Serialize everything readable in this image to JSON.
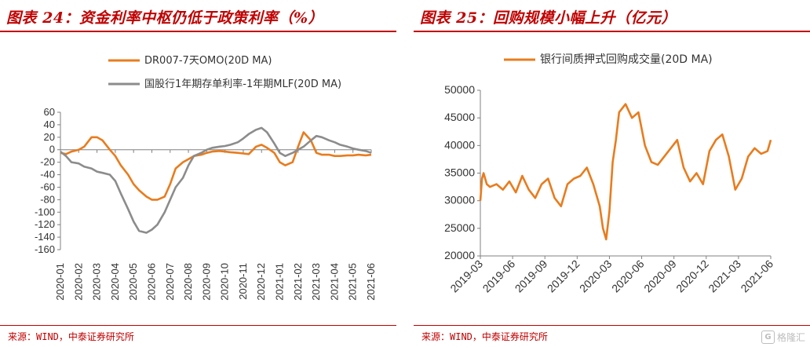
{
  "left": {
    "title": "图表 24：资金利率中枢仍低于政策利率（%）",
    "source": "来源：WIND，中泰证券研究所",
    "chart_data": {
      "type": "line",
      "title": "",
      "xlabel": "",
      "ylabel": "",
      "ylim": [
        -160,
        60
      ],
      "yticks": [
        60,
        40,
        20,
        0,
        -20,
        -40,
        -60,
        -80,
        -100,
        -120,
        -140,
        -160
      ],
      "x_tick_labels": [
        "2020-01",
        "2020-02",
        "2020-03",
        "2020-04",
        "2020-05",
        "2020-06",
        "2020-07",
        "2020-08",
        "2020-09",
        "2020-10",
        "2020-11",
        "2020-12",
        "2021-01",
        "2021-02",
        "2021-03",
        "2021-04",
        "2021-05",
        "2021-06"
      ],
      "legend_position": "top-left",
      "series": [
        {
          "name": "DR007-7天OMO(20D MA)",
          "color": "#e87c1e",
          "x": [
            0,
            0.3,
            0.6,
            1.0,
            1.3,
            1.7,
            2.0,
            2.3,
            2.7,
            3.0,
            3.3,
            3.7,
            4.0,
            4.3,
            4.7,
            5.0,
            5.3,
            5.7,
            6.0,
            6.3,
            6.7,
            7.0,
            7.3,
            7.7,
            8.0,
            8.3,
            8.7,
            9.0,
            9.3,
            9.7,
            10.0,
            10.3,
            10.7,
            11.0,
            11.3,
            11.7,
            12.0,
            12.3,
            12.7,
            13.0,
            13.3,
            13.7,
            14.0,
            14.3,
            14.7,
            15.0,
            15.3,
            15.7,
            16.0,
            16.3,
            16.7,
            17.0
          ],
          "y": [
            -5,
            -7,
            -3,
            0,
            5,
            20,
            20,
            15,
            0,
            -10,
            -25,
            -40,
            -55,
            -65,
            -75,
            -80,
            -80,
            -75,
            -55,
            -30,
            -20,
            -15,
            -10,
            -8,
            -5,
            -3,
            -2,
            -3,
            -4,
            -5,
            -6,
            -7,
            5,
            8,
            3,
            -5,
            -20,
            -25,
            -20,
            5,
            28,
            15,
            -5,
            -8,
            -8,
            -10,
            -10,
            -9,
            -9,
            -8,
            -9,
            -8
          ]
        },
        {
          "name": "国股行1年期存单利率-1年期MLF(20D MA)",
          "color": "#8c8c8c",
          "x": [
            0,
            0.3,
            0.6,
            1.0,
            1.3,
            1.7,
            2.0,
            2.3,
            2.7,
            3.0,
            3.3,
            3.7,
            4.0,
            4.3,
            4.7,
            5.0,
            5.3,
            5.7,
            6.0,
            6.3,
            6.7,
            7.0,
            7.3,
            7.7,
            8.0,
            8.3,
            8.7,
            9.0,
            9.3,
            9.7,
            10.0,
            10.3,
            10.7,
            11.0,
            11.3,
            11.7,
            12.0,
            12.3,
            12.7,
            13.0,
            13.3,
            13.7,
            14.0,
            14.3,
            14.7,
            15.0,
            15.3,
            15.7,
            16.0,
            16.3,
            16.7,
            17.0
          ],
          "y": [
            -3,
            -10,
            -20,
            -22,
            -27,
            -30,
            -35,
            -37,
            -40,
            -50,
            -70,
            -95,
            -115,
            -130,
            -133,
            -128,
            -120,
            -100,
            -80,
            -60,
            -45,
            -25,
            -10,
            -5,
            0,
            3,
            5,
            6,
            8,
            12,
            18,
            25,
            32,
            35,
            28,
            10,
            -5,
            -10,
            -5,
            0,
            5,
            15,
            22,
            20,
            15,
            12,
            8,
            5,
            2,
            0,
            -2,
            -5
          ]
        }
      ]
    }
  },
  "right": {
    "title": "图表 25：回购规模小幅上升（亿元）",
    "source": "来源：WIND，中泰证券研究所",
    "watermark": "格隆汇",
    "watermark_mark": "G",
    "chart_data": {
      "type": "line",
      "title": "",
      "xlabel": "",
      "ylabel": "",
      "ylim": [
        20000,
        50000
      ],
      "yticks": [
        50000,
        45000,
        40000,
        35000,
        30000,
        25000,
        20000
      ],
      "x_tick_labels": [
        "2019-03",
        "2019-06",
        "2019-09",
        "2019-12",
        "2020-03",
        "2020-06",
        "2020-09",
        "2020-12",
        "2021-03",
        "2021-06"
      ],
      "legend_position": "top-left",
      "series": [
        {
          "name": "银行间质押式回购成交量(20D MA)",
          "color": "#e87c1e",
          "x": [
            0,
            0.05,
            0.1,
            0.2,
            0.3,
            0.5,
            0.7,
            0.9,
            1.1,
            1.3,
            1.5,
            1.7,
            1.9,
            2.1,
            2.3,
            2.5,
            2.7,
            2.9,
            3.1,
            3.3,
            3.5,
            3.7,
            3.8,
            3.9,
            4.0,
            4.1,
            4.2,
            4.3,
            4.5,
            4.7,
            4.9,
            5.1,
            5.3,
            5.5,
            5.7,
            5.9,
            6.1,
            6.3,
            6.5,
            6.7,
            6.9,
            7.1,
            7.3,
            7.5,
            7.7,
            7.9,
            8.1,
            8.3,
            8.5,
            8.7,
            8.9,
            9.0
          ],
          "y": [
            30000,
            34000,
            35000,
            33000,
            32500,
            33000,
            32000,
            33500,
            31500,
            34500,
            32000,
            30500,
            33000,
            34000,
            30500,
            29000,
            33000,
            34000,
            34500,
            36000,
            33000,
            29000,
            25000,
            23000,
            28000,
            37000,
            41000,
            46000,
            47500,
            45000,
            46000,
            40000,
            37000,
            36500,
            38000,
            39500,
            41000,
            36000,
            33500,
            35000,
            33000,
            39000,
            41000,
            42000,
            38000,
            32000,
            34000,
            38000,
            39500,
            38500,
            39000,
            41000
          ]
        }
      ]
    }
  }
}
